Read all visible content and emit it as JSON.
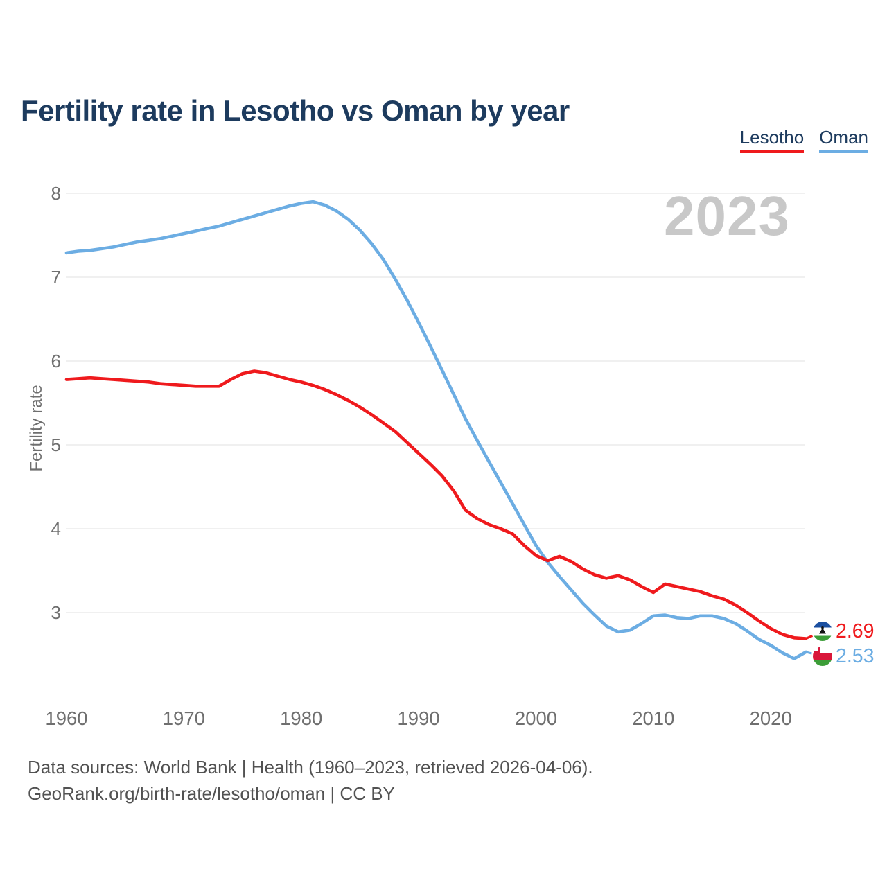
{
  "title": "Fertility rate in Lesotho vs Oman by year",
  "watermark": "2023",
  "legend": [
    {
      "label": "Lesotho",
      "color": "#ef1a1d"
    },
    {
      "label": "Oman",
      "color": "#6cade3"
    }
  ],
  "y_axis": {
    "label": "Fertility rate",
    "ticks": [
      8,
      7,
      6,
      5,
      4,
      3
    ]
  },
  "x_axis": {
    "ticks": [
      1960,
      1970,
      1980,
      1990,
      2000,
      2010,
      2020
    ]
  },
  "footer": {
    "line1": "Data sources: World Bank | Health (1960–2023, retrieved 2026-04-06).",
    "line2": "GeoRank.org/birth-rate/lesotho/oman | CC BY"
  },
  "colors": {
    "title_navy": "#1d3b5e",
    "axis_text_gray": "#6f6f6f",
    "gridline_gray": "#e6e6e6",
    "watermark_gray": "#c8c8c8",
    "footer_gray": "#525252",
    "lesotho_red": "#ef1a1d",
    "oman_blue": "#6cade3"
  },
  "chart_data": {
    "type": "line",
    "title": "Fertility rate in Lesotho vs Oman by year",
    "xlabel": "",
    "ylabel": "Fertility rate",
    "xlim": [
      1960,
      2023
    ],
    "ylim": [
      2.35,
      8.1
    ],
    "y_ticks": [
      3,
      4,
      5,
      6,
      7,
      8
    ],
    "x_ticks": [
      1960,
      1970,
      1980,
      1990,
      2000,
      2010,
      2020
    ],
    "grid": "horizontal",
    "legend_position": "top-right",
    "watermark": "2023",
    "years": [
      1960,
      1961,
      1962,
      1963,
      1964,
      1965,
      1966,
      1967,
      1968,
      1969,
      1970,
      1971,
      1972,
      1973,
      1974,
      1975,
      1976,
      1977,
      1978,
      1979,
      1980,
      1981,
      1982,
      1983,
      1984,
      1985,
      1986,
      1987,
      1988,
      1989,
      1990,
      1991,
      1992,
      1993,
      1994,
      1995,
      1996,
      1997,
      1998,
      1999,
      2000,
      2001,
      2002,
      2003,
      2004,
      2005,
      2006,
      2007,
      2008,
      2009,
      2010,
      2011,
      2012,
      2013,
      2014,
      2015,
      2016,
      2017,
      2018,
      2019,
      2020,
      2021,
      2022,
      2023
    ],
    "series": [
      {
        "name": "Lesotho",
        "color": "#ef1a1d",
        "end_label": "2.69",
        "flag": "lesotho",
        "values": [
          5.78,
          5.79,
          5.8,
          5.79,
          5.78,
          5.77,
          5.76,
          5.75,
          5.73,
          5.72,
          5.71,
          5.7,
          5.7,
          5.7,
          5.78,
          5.85,
          5.88,
          5.86,
          5.82,
          5.78,
          5.75,
          5.71,
          5.66,
          5.6,
          5.53,
          5.45,
          5.36,
          5.26,
          5.16,
          5.03,
          4.9,
          4.77,
          4.63,
          4.45,
          4.22,
          4.12,
          4.05,
          4.0,
          3.94,
          3.8,
          3.68,
          3.62,
          3.67,
          3.61,
          3.52,
          3.45,
          3.41,
          3.44,
          3.39,
          3.31,
          3.24,
          3.34,
          3.31,
          3.28,
          3.25,
          3.2,
          3.16,
          3.09,
          3.0,
          2.9,
          2.81,
          2.74,
          2.7,
          2.69
        ]
      },
      {
        "name": "Oman",
        "color": "#6cade3",
        "end_label": "2.53",
        "flag": "oman",
        "values": [
          7.29,
          7.31,
          7.32,
          7.34,
          7.36,
          7.39,
          7.42,
          7.44,
          7.46,
          7.49,
          7.52,
          7.55,
          7.58,
          7.61,
          7.65,
          7.69,
          7.73,
          7.77,
          7.81,
          7.85,
          7.88,
          7.9,
          7.86,
          7.79,
          7.69,
          7.56,
          7.4,
          7.21,
          6.98,
          6.73,
          6.46,
          6.18,
          5.89,
          5.6,
          5.31,
          5.05,
          4.8,
          4.55,
          4.3,
          4.05,
          3.8,
          3.6,
          3.43,
          3.27,
          3.11,
          2.97,
          2.84,
          2.77,
          2.79,
          2.87,
          2.96,
          2.97,
          2.94,
          2.93,
          2.96,
          2.96,
          2.93,
          2.87,
          2.78,
          2.68,
          2.61,
          2.52,
          2.45,
          2.53
        ]
      }
    ],
    "flag_colors": {
      "lesotho": {
        "blue": "#1b4fa0",
        "white": "#ffffff",
        "green": "#3c9d38",
        "hat": "#111111"
      },
      "oman": {
        "red": "#d9173a",
        "white": "#ffffff",
        "green": "#3c9d38"
      }
    }
  }
}
